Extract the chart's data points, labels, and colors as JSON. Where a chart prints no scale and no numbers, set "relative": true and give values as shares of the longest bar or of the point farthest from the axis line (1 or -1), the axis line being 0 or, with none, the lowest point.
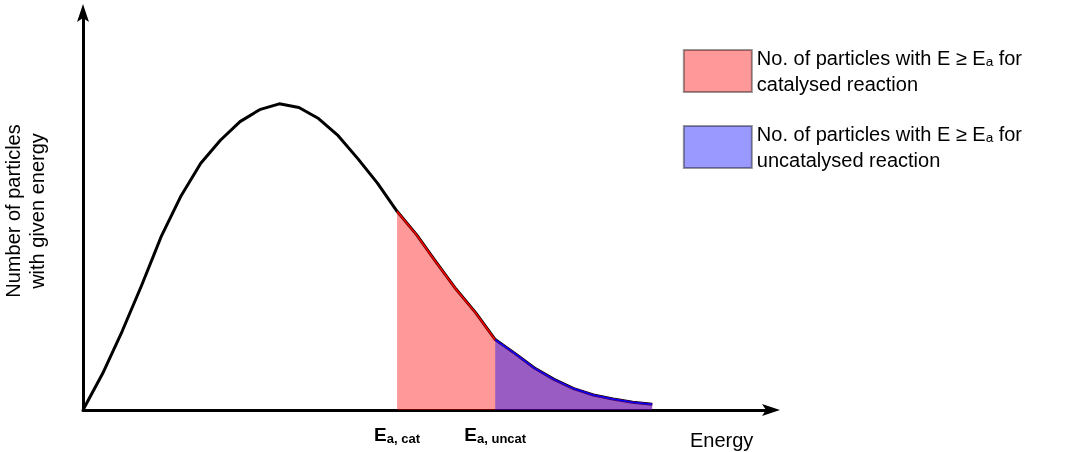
{
  "chart_data": {
    "type": "line",
    "relative": true,
    "xlabel": "Energy",
    "ylabel": "Number of particles\nwith given energy",
    "categories": [
      null,
      null,
      null,
      null,
      null,
      null,
      null,
      null,
      null,
      null,
      null,
      null,
      null,
      null,
      null,
      null,
      "E$_{a, cat}$",
      null,
      null,
      null,
      null,
      "E$_{a, uncat}$",
      null,
      null,
      null,
      null,
      null,
      null,
      null,
      null,
      null,
      null,
      null,
      null,
      null,
      null
    ],
    "marker": "none",
    "legend": "top right",
    "series": [
      {
        "color": "#000000",
        "values": [
          0,
          0.119,
          0.258,
          0.409,
          0.569,
          0.7,
          0.806,
          0.881,
          0.942,
          0.981,
          1,
          0.988,
          0.952,
          0.896,
          0.821,
          0.741,
          0.649,
          0.572,
          0.482,
          0.395,
          0.318,
          0.23,
          0.185,
          0.137,
          0.1,
          0.07,
          0.049,
          0.036,
          0.025,
          0.019,
          null,
          null,
          null,
          null,
          null,
          null
        ]
      },
      {
        "type": "area",
        "name": "No. of particles with E ≥ Eₐ for\ncatalysed reaction",
        "color": "#ff0000",
        "values": [
          null,
          null,
          null,
          null,
          null,
          null,
          null,
          null,
          null,
          null,
          null,
          null,
          null,
          null,
          null,
          null,
          0.649,
          0.572,
          0.482,
          0.395,
          0.318,
          0.23,
          0.185,
          0.137,
          0.1,
          0.07,
          0.049,
          0.036,
          0.025,
          0.019,
          null,
          null,
          null,
          null,
          null,
          null
        ]
      },
      {
        "type": "area",
        "name": "No. of particles with E ≥ Eₐ for\nuncatalysed reaction",
        "color": "#0000ff",
        "values": [
          null,
          null,
          null,
          null,
          null,
          null,
          null,
          null,
          null,
          null,
          null,
          null,
          null,
          null,
          null,
          null,
          null,
          null,
          null,
          null,
          null,
          0.23,
          0.185,
          0.137,
          0.1,
          0.07,
          0.049,
          0.036,
          0.025,
          0.019,
          null,
          null,
          null,
          null,
          null,
          null
        ]
      }
    ]
  }
}
